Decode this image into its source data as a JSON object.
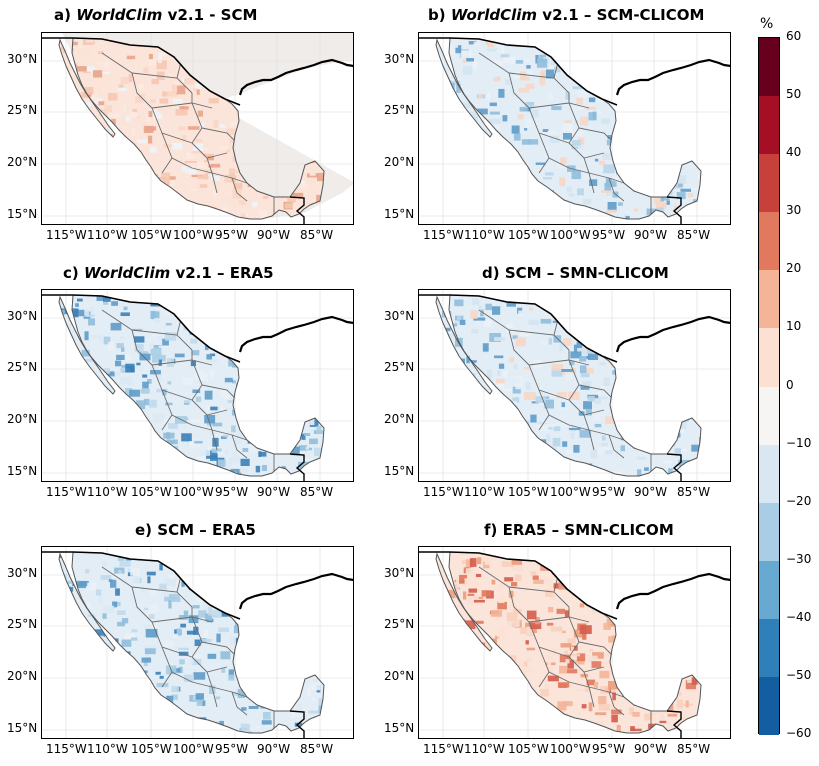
{
  "figure": {
    "colorbar": {
      "unit": "%",
      "ticks": [
        "60",
        "50",
        "40",
        "30",
        "20",
        "10",
        "0",
        "−10",
        "−20",
        "−30",
        "−40",
        "−50",
        "−60"
      ],
      "colors": [
        "#67001f",
        "#a50f26",
        "#c7413a",
        "#e0795d",
        "#f4b497",
        "#fce1d3",
        "#f7f5f3",
        "#d9e7f2",
        "#a9cde4",
        "#67a9d1",
        "#2f7fb9",
        "#125ea1",
        "#053061"
      ]
    },
    "lat_ticks": [
      "30°N",
      "25°N",
      "20°N",
      "15°N"
    ],
    "lon_ticks": [
      "115°W",
      "110°W",
      "105°W",
      "100°W",
      "95°W",
      "90°W",
      "85°W"
    ],
    "panels": [
      {
        "letter": "a)",
        "italic": "WorldClim",
        "rest": " v2.1 - SCM",
        "tone": "red-light",
        "masked_outside": true
      },
      {
        "letter": "b)",
        "italic": "WorldClim",
        "rest": " v2.1 – SCM-CLICOM",
        "tone": "blue-mixed",
        "masked_outside": false
      },
      {
        "letter": "c)",
        "italic": "WorldClim",
        "rest": " v2.1 – ERA5",
        "tone": "blue-strong",
        "masked_outside": false
      },
      {
        "letter": "d)",
        "italic": "",
        "rest": "SCM – SMN-CLICOM",
        "tone": "blue-mixed",
        "masked_outside": false
      },
      {
        "letter": "e)",
        "italic": "",
        "rest": "SCM – ERA5",
        "tone": "blue-strong",
        "masked_outside": false
      },
      {
        "letter": "f)",
        "italic": "",
        "rest": "ERA5 – SMN-CLICOM",
        "tone": "red-strong",
        "masked_outside": false
      }
    ]
  }
}
